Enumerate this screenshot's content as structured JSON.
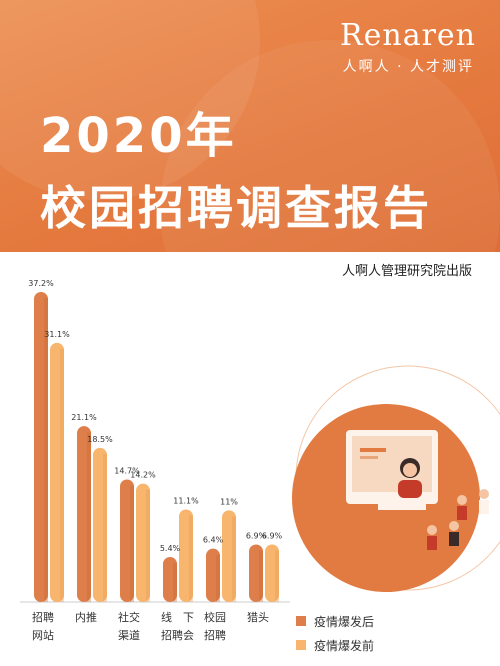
{
  "header": {
    "brand": "Renaren",
    "brand_sub": "人啊人 · 人才测评",
    "title_year": "2020年",
    "title_main": "校园招聘调查报告",
    "publisher": "人啊人管理研究院出版"
  },
  "colors": {
    "header_bg": "#e57a3f",
    "series_after": "#de7f4b",
    "series_before": "#f8b56e"
  },
  "icons": [
    "person-at-monitor-illustration",
    "graduates-illustration"
  ],
  "chart_data": {
    "type": "bar",
    "categories": [
      "招聘\n网站",
      "内推",
      "社交\n渠道",
      "线　下\n招聘会",
      "校园\n招聘",
      "猎头"
    ],
    "series": [
      {
        "name": "疫情爆发后",
        "values": [
          37.2,
          21.1,
          14.7,
          5.4,
          6.4,
          6.9
        ]
      },
      {
        "name": "疫情爆发前",
        "values": [
          31.1,
          18.5,
          14.2,
          11.1,
          11,
          6.9
        ]
      }
    ],
    "data_labels": [
      [
        "37.2%",
        "21.1%",
        "14.7%",
        "5.4%",
        "6.4%",
        "6.9%"
      ],
      [
        "31.1%",
        "18.5%",
        "14.2%",
        "11.1%",
        "11%",
        "6.9%"
      ]
    ],
    "ylim": [
      0,
      37.2
    ],
    "grid": false,
    "legend_position": "bottom-right",
    "title": "",
    "xlabel": "",
    "ylabel": ""
  }
}
